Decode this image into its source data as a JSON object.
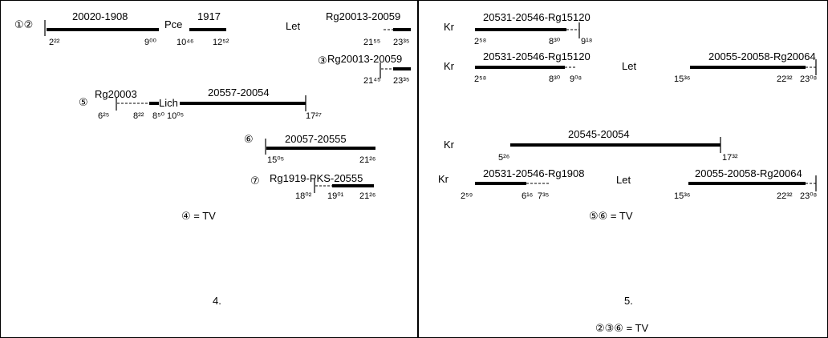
{
  "panels": [
    {
      "id": "p4",
      "page_number": "4.",
      "footnotes": [
        "④ = TV"
      ],
      "tracks": [
        {
          "marker": "①②",
          "segments": [
            {
              "label": "20020-1908",
              "style": "solid",
              "start": "2²²",
              "end": "9⁰⁰",
              "tick_start": true
            },
            {
              "label": "Pce",
              "style": "none"
            },
            {
              "label": "1917",
              "style": "solid",
              "start": "10⁴⁶",
              "end": "12⁵²"
            },
            {
              "label": "Let",
              "style": "none"
            },
            {
              "label": "Rg20013-20059",
              "style": "dashed+solid",
              "start": "21⁵⁵",
              "end": "23³⁵"
            }
          ]
        },
        {
          "marker": "③",
          "segments": [
            {
              "label": "Rg20013-20059",
              "style": "dashed+solid",
              "start": "21⁴⁵",
              "end": "23³⁵",
              "tick_start": true
            }
          ]
        },
        {
          "marker": "⑤",
          "segments": [
            {
              "label": "Rg20003",
              "style": "dashed",
              "start": "6²⁵",
              "end": "8²²",
              "tick_start": true
            },
            {
              "label": "Lich",
              "style": "solid",
              "start": "8⁵⁰",
              "end": "10⁰⁵"
            },
            {
              "label": "20557-20054",
              "style": "solid",
              "start": "10⁰⁵",
              "end": "17²⁷",
              "tick_end": true
            }
          ]
        },
        {
          "marker": "⑥",
          "segments": [
            {
              "label": "20057-20555",
              "style": "solid",
              "start": "15⁰⁵",
              "end": "21²⁶",
              "tick_start": true
            }
          ]
        },
        {
          "marker": "⑦",
          "segments": [
            {
              "label": "Rg1919-PKS-20555",
              "style": "dashed+solid",
              "start": "18⁰²",
              "mid": "19⁰¹",
              "end": "21²⁶",
              "tick_start": true
            }
          ]
        }
      ]
    },
    {
      "id": "p5",
      "page_number": "5.",
      "footnotes": [
        "⑤⑥ = TV",
        "②③⑥ = TV"
      ],
      "tracks": [
        {
          "prefix": "Kr",
          "segments": [
            {
              "label": "20531-20546-Rg15120",
              "style": "solid+dashed",
              "start": "2⁵⁸",
              "mid": "8³⁰",
              "end": "9¹⁸",
              "tick_end": true
            }
          ]
        },
        {
          "prefix": "Kr",
          "segments": [
            {
              "label": "20531-20546-Rg15120",
              "style": "solid+dashed",
              "start": "2⁵⁸",
              "mid": "8³⁰",
              "end": "9⁰⁸"
            },
            {
              "label": "Let",
              "style": "none"
            },
            {
              "label": "20055-20058-Rg20064",
              "style": "solid+dashed",
              "start": "15³⁶",
              "mid": "22³²",
              "end": "23⁰⁸",
              "tick_end": true
            }
          ]
        },
        {
          "prefix": "Kr",
          "segments": [
            {
              "label": "20545-20054",
              "style": "solid",
              "start": "5²⁶",
              "end": "17³²",
              "tick_end": true
            }
          ]
        },
        {
          "prefix": "Kr",
          "segments": [
            {
              "label": "20531-20546-Rg1908",
              "style": "solid+dashed",
              "start": "2⁵⁹",
              "mid": "6¹⁶",
              "end": "7³⁵"
            },
            {
              "label": "Let",
              "style": "none"
            },
            {
              "label": "20055-20058-Rg20064",
              "style": "solid+dashed",
              "start": "15³⁶",
              "mid": "22³²",
              "end": "23⁰⁸",
              "tick_end": true
            }
          ]
        }
      ]
    }
  ]
}
